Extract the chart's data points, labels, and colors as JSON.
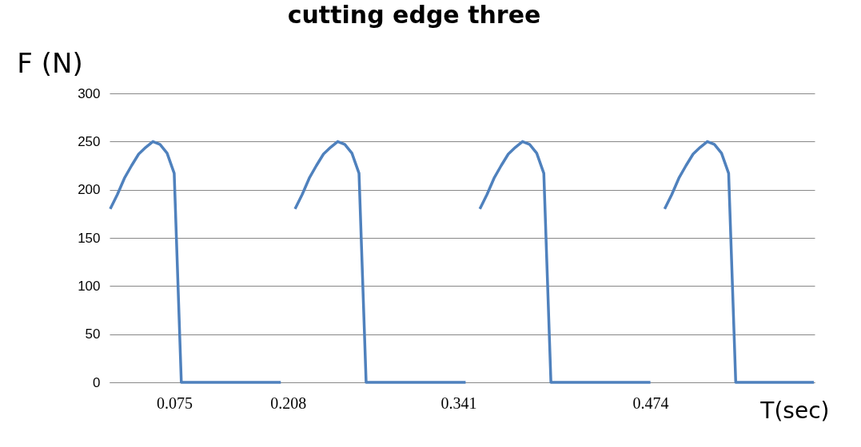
{
  "chart_data": {
    "type": "line",
    "title": "cutting edge three",
    "xlabel": "T(sec)",
    "ylabel": "F (N)",
    "categories": [
      null,
      null,
      null,
      null,
      null,
      null,
      null,
      null,
      null,
      "0.075",
      null,
      null,
      null,
      null,
      null,
      null,
      null,
      null,
      null,
      null,
      null,
      null,
      null,
      null,
      null,
      "0.208",
      null,
      null,
      null,
      null,
      null,
      null,
      null,
      null,
      null,
      null,
      null,
      null,
      null,
      null,
      null,
      null,
      null,
      null,
      null,
      null,
      null,
      null,
      null,
      "0.341",
      null,
      null,
      null,
      null,
      null,
      null,
      null,
      null,
      null,
      null,
      null,
      null,
      null,
      null,
      null,
      null,
      null,
      null,
      null,
      null,
      null,
      null,
      null,
      null,
      null,
      null,
      "0.474",
      null,
      null,
      null,
      null,
      null,
      null,
      null,
      null,
      null,
      null,
      null,
      null,
      null,
      null,
      null,
      null,
      null,
      null,
      null,
      null,
      null,
      null,
      null
    ],
    "series": [
      {
        "color": "#4f81bd",
        "values": [
          180,
          195,
          212,
          225,
          237,
          244,
          250,
          247,
          238,
          217,
          0,
          0,
          0,
          0,
          0,
          0,
          0,
          0,
          0,
          0,
          0,
          0,
          0,
          0,
          0,
          null,
          180,
          195,
          212,
          225,
          237,
          244,
          250,
          247,
          238,
          217,
          0,
          0,
          0,
          0,
          0,
          0,
          0,
          0,
          0,
          0,
          0,
          0,
          0,
          0,
          0,
          null,
          180,
          195,
          212,
          225,
          237,
          244,
          250,
          247,
          238,
          217,
          0,
          0,
          0,
          0,
          0,
          0,
          0,
          0,
          0,
          0,
          0,
          0,
          0,
          0,
          0,
          null,
          180,
          195,
          212,
          225,
          237,
          244,
          250,
          247,
          238,
          217,
          0,
          0,
          0,
          0,
          0,
          0,
          0,
          0,
          0,
          0,
          0,
          0
        ]
      }
    ],
    "ylim": [
      0,
      300
    ],
    "yticks": [
      0,
      50,
      100,
      150,
      200,
      250,
      300
    ],
    "grid": "y",
    "legend": false,
    "marker": "none",
    "line_style": "solid"
  }
}
